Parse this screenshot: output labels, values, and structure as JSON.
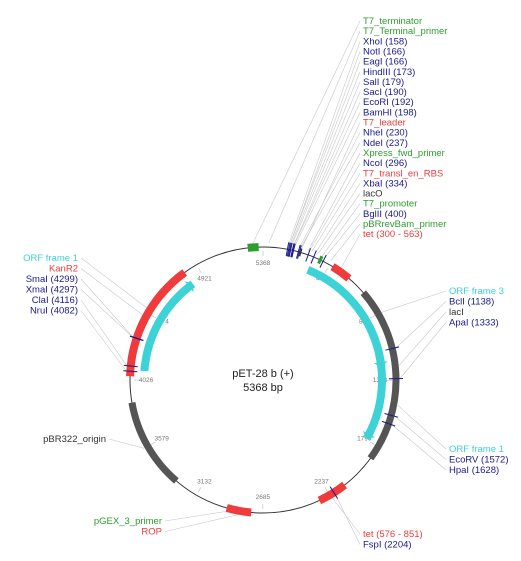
{
  "plasmid": {
    "name": "pET-28 b (+)",
    "size_label": "5368 bp",
    "length": 5368
  },
  "colors": {
    "enzyme": "#1a1a8c",
    "primer": "#2e9d2e",
    "promoter": "#2e9d2e",
    "terminator": "#2e9d2e",
    "orf": "#3dd3d6",
    "resistance": "#ef3b3b",
    "origin": "#555555",
    "misc": "#333333"
  },
  "ticks": [
    "448",
    "896",
    "1343",
    "1790",
    "2237",
    "2685",
    "3132",
    "3579",
    "4026",
    "4474",
    "4921",
    "5368"
  ],
  "features": [
    {
      "name": "T7_terminator",
      "type": "terminator",
      "start": 5270,
      "end": 5340
    },
    {
      "name": "T7_Terminal_primer",
      "type": "primer",
      "start": 26,
      "end": 46
    },
    {
      "name": "T7_leader",
      "type": "misc",
      "start": 240,
      "end": 250
    },
    {
      "name": "Xpress_fwd_primer",
      "type": "primer",
      "start": 275,
      "end": 300
    },
    {
      "name": "T7_promoter",
      "type": "promoter",
      "start": 370,
      "end": 390
    },
    {
      "name": "pBRrevBam_primer",
      "type": "primer",
      "start": 430,
      "end": 450
    },
    {
      "name": "tet (300 - 563)",
      "type": "resistance",
      "start": 470,
      "end": 600
    },
    {
      "name": "ORF frame 3",
      "type": "orf",
      "start": 330,
      "end": 1250,
      "arrow": true
    },
    {
      "name": "lacI",
      "type": "origin",
      "start": 730,
      "end": 1880
    },
    {
      "name": "ORF frame 1 (right)",
      "type": "orf",
      "start": 930,
      "end": 1780,
      "arrow": true
    },
    {
      "name": "tet (576 - 851)",
      "type": "resistance",
      "start": 2120,
      "end": 2310
    },
    {
      "name": "pGEX_3_primer",
      "type": "primer",
      "start": 2910,
      "end": 2940
    },
    {
      "name": "ROP",
      "type": "resistance",
      "start": 2760,
      "end": 2920
    },
    {
      "name": "pBR322_origin",
      "type": "origin",
      "start": 3290,
      "end": 3880
    },
    {
      "name": "KanR2",
      "type": "resistance",
      "start": 4050,
      "end": 4830
    },
    {
      "name": "ORF frame 1 (left)",
      "type": "orf",
      "start": 4090,
      "end": 4830,
      "arrow": true
    }
  ],
  "sites": [
    {
      "pos": 158
    },
    {
      "pos": 166
    },
    {
      "pos": 173
    },
    {
      "pos": 179
    },
    {
      "pos": 190
    },
    {
      "pos": 192
    },
    {
      "pos": 198
    },
    {
      "pos": 230
    },
    {
      "pos": 237
    },
    {
      "pos": 296
    },
    {
      "pos": 334
    },
    {
      "pos": 400
    },
    {
      "pos": 1138
    },
    {
      "pos": 1333
    },
    {
      "pos": 1572
    },
    {
      "pos": 1628
    },
    {
      "pos": 2204
    },
    {
      "pos": 4082
    },
    {
      "pos": 4116
    },
    {
      "pos": 4297
    },
    {
      "pos": 4299
    }
  ],
  "labels": {
    "top": [
      {
        "text": "T7_terminator",
        "kind": "primer",
        "pos": 5305
      },
      {
        "text": "T7_Terminal_primer",
        "kind": "primer",
        "pos": 36
      },
      {
        "text": "XhoI (158)",
        "kind": "enzyme",
        "pos": 158
      },
      {
        "text": "NotI (166)",
        "kind": "enzyme",
        "pos": 166
      },
      {
        "text": "EagI (166)",
        "kind": "enzyme",
        "pos": 166
      },
      {
        "text": "HindIII (173)",
        "kind": "enzyme",
        "pos": 173
      },
      {
        "text": "SalI (179)",
        "kind": "enzyme",
        "pos": 179
      },
      {
        "text": "SacI (190)",
        "kind": "enzyme",
        "pos": 190
      },
      {
        "text": "EcoRI (192)",
        "kind": "enzyme",
        "pos": 192
      },
      {
        "text": "BamHI (198)",
        "kind": "enzyme",
        "pos": 198
      },
      {
        "text": "T7_leader",
        "kind": "resistance",
        "pos": 245
      },
      {
        "text": "NheI (230)",
        "kind": "enzyme",
        "pos": 230
      },
      {
        "text": "NdeI (237)",
        "kind": "enzyme",
        "pos": 237
      },
      {
        "text": "Xpress_fwd_primer",
        "kind": "primer",
        "pos": 288
      },
      {
        "text": "NcoI (296)",
        "kind": "enzyme",
        "pos": 296
      },
      {
        "text": "T7_transl_en_RBS",
        "kind": "resistance",
        "pos": 310
      },
      {
        "text": "XbaI (334)",
        "kind": "enzyme",
        "pos": 334
      },
      {
        "text": "lacO",
        "kind": "misc",
        "pos": 350
      },
      {
        "text": "T7_promoter",
        "kind": "primer",
        "pos": 380
      },
      {
        "text": "BglII (400)",
        "kind": "enzyme",
        "pos": 400
      },
      {
        "text": "pBRrevBam_primer",
        "kind": "primer",
        "pos": 440
      },
      {
        "text": "tet (300 - 563)",
        "kind": "resistance",
        "pos": 520
      }
    ],
    "right_upper": [
      {
        "text": "ORF frame 3",
        "kind": "orf",
        "pos": 900
      },
      {
        "text": "BclI (1138)",
        "kind": "enzyme",
        "pos": 1138
      },
      {
        "text": "lacI",
        "kind": "misc",
        "pos": 1250
      },
      {
        "text": "ApaI (1333)",
        "kind": "enzyme",
        "pos": 1333
      }
    ],
    "right_lower": [
      {
        "text": "ORF frame 1",
        "kind": "orf",
        "pos": 1500
      },
      {
        "text": "EcoRV (1572)",
        "kind": "enzyme",
        "pos": 1572
      },
      {
        "text": "HpaI (1628)",
        "kind": "enzyme",
        "pos": 1628
      }
    ],
    "bottom_right": [
      {
        "text": "tet (576 - 851)",
        "kind": "resistance",
        "pos": 2230
      },
      {
        "text": "FspI (2204)",
        "kind": "enzyme",
        "pos": 2204
      }
    ],
    "bottom_left": [
      {
        "text": "pGEX_3_primer",
        "kind": "primer",
        "pos": 2925
      },
      {
        "text": "ROP",
        "kind": "resistance",
        "pos": 2840
      }
    ],
    "left_middle": [
      {
        "text": "pBR322_origin",
        "kind": "misc",
        "pos": 3580
      }
    ],
    "left_upper": [
      {
        "text": "ORF frame 1",
        "kind": "orf",
        "pos": 4500
      },
      {
        "text": "KanR2",
        "kind": "resistance",
        "pos": 4450
      },
      {
        "text": "SmaI (4299)",
        "kind": "enzyme",
        "pos": 4299
      },
      {
        "text": "XmaI (4297)",
        "kind": "enzyme",
        "pos": 4297
      },
      {
        "text": "ClaI (4116)",
        "kind": "enzyme",
        "pos": 4116
      },
      {
        "text": "NruI (4082)",
        "kind": "enzyme",
        "pos": 4082
      }
    ]
  }
}
